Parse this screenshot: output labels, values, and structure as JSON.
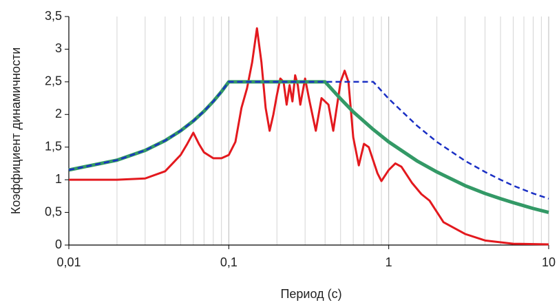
{
  "chart_data": {
    "type": "line",
    "xlabel": "Период (с)",
    "ylabel": "Коэффициент динамичности",
    "xscale": "log",
    "xlim": [
      0.01,
      10
    ],
    "xticks": [
      {
        "value": 0.01,
        "label": "0,01"
      },
      {
        "value": 0.1,
        "label": "0,1"
      },
      1,
      10
    ],
    "ylim": [
      0,
      3.5
    ],
    "yticks": [
      0,
      {
        "value": 0.5,
        "label": "0,5"
      },
      1,
      {
        "value": 1.5,
        "label": "1,5"
      },
      2,
      {
        "value": 2.5,
        "label": "2,5"
      },
      3,
      {
        "value": 3.5,
        "label": "3,5"
      }
    ],
    "grid": "x",
    "minor_grid": true,
    "series": [
      {
        "color": "#e3191e",
        "line_width": 3,
        "dashed": false,
        "x": [
          0.01,
          0.02,
          0.03,
          0.04,
          0.05,
          0.055,
          0.06,
          0.065,
          0.07,
          0.08,
          0.09,
          0.1,
          0.11,
          0.12,
          0.13,
          0.14,
          0.15,
          0.16,
          0.17,
          0.18,
          0.19,
          0.2,
          0.21,
          0.22,
          0.23,
          0.24,
          0.25,
          0.26,
          0.27,
          0.28,
          0.3,
          0.32,
          0.35,
          0.38,
          0.42,
          0.45,
          0.5,
          0.53,
          0.56,
          0.6,
          0.65,
          0.7,
          0.75,
          0.85,
          0.9,
          1.0,
          1.1,
          1.2,
          1.4,
          1.6,
          1.8,
          2.2,
          3,
          4,
          6,
          10
        ],
        "values": [
          1.0,
          1.0,
          1.02,
          1.13,
          1.38,
          1.55,
          1.72,
          1.55,
          1.42,
          1.33,
          1.33,
          1.38,
          1.58,
          2.1,
          2.4,
          2.8,
          3.32,
          2.8,
          2.1,
          1.75,
          2.0,
          2.3,
          2.55,
          2.5,
          2.15,
          2.45,
          2.2,
          2.6,
          2.45,
          2.15,
          2.55,
          2.2,
          1.75,
          2.25,
          2.15,
          1.75,
          2.5,
          2.67,
          2.5,
          1.65,
          1.22,
          1.55,
          1.5,
          1.1,
          0.98,
          1.15,
          1.25,
          1.2,
          0.95,
          0.78,
          0.68,
          0.35,
          0.17,
          0.07,
          0.02,
          0.01
        ]
      },
      {
        "color": "#339966",
        "line_width": 5,
        "dashed": false,
        "x": [
          0.01,
          0.02,
          0.03,
          0.04,
          0.05,
          0.06,
          0.07,
          0.08,
          0.09,
          0.1,
          0.4,
          0.5,
          0.6,
          0.8,
          1,
          1.5,
          2,
          3,
          4,
          5,
          6,
          8,
          10
        ],
        "values": [
          1.15,
          1.3,
          1.45,
          1.6,
          1.75,
          1.9,
          2.05,
          2.2,
          2.35,
          2.5,
          2.5,
          2.24,
          2.04,
          1.77,
          1.58,
          1.29,
          1.12,
          0.91,
          0.79,
          0.71,
          0.65,
          0.56,
          0.5
        ]
      },
      {
        "color": "#1a2fc4",
        "line_width": 2.5,
        "dashed": true,
        "x": [
          0.01,
          0.02,
          0.03,
          0.04,
          0.05,
          0.06,
          0.07,
          0.08,
          0.09,
          0.1,
          0.8,
          1,
          1.5,
          2,
          3,
          4,
          5,
          6,
          8,
          10
        ],
        "values": [
          1.15,
          1.3,
          1.45,
          1.6,
          1.75,
          1.9,
          2.05,
          2.2,
          2.35,
          2.5,
          2.5,
          2.24,
          1.83,
          1.58,
          1.29,
          1.12,
          1.0,
          0.91,
          0.79,
          0.71
        ]
      }
    ]
  }
}
